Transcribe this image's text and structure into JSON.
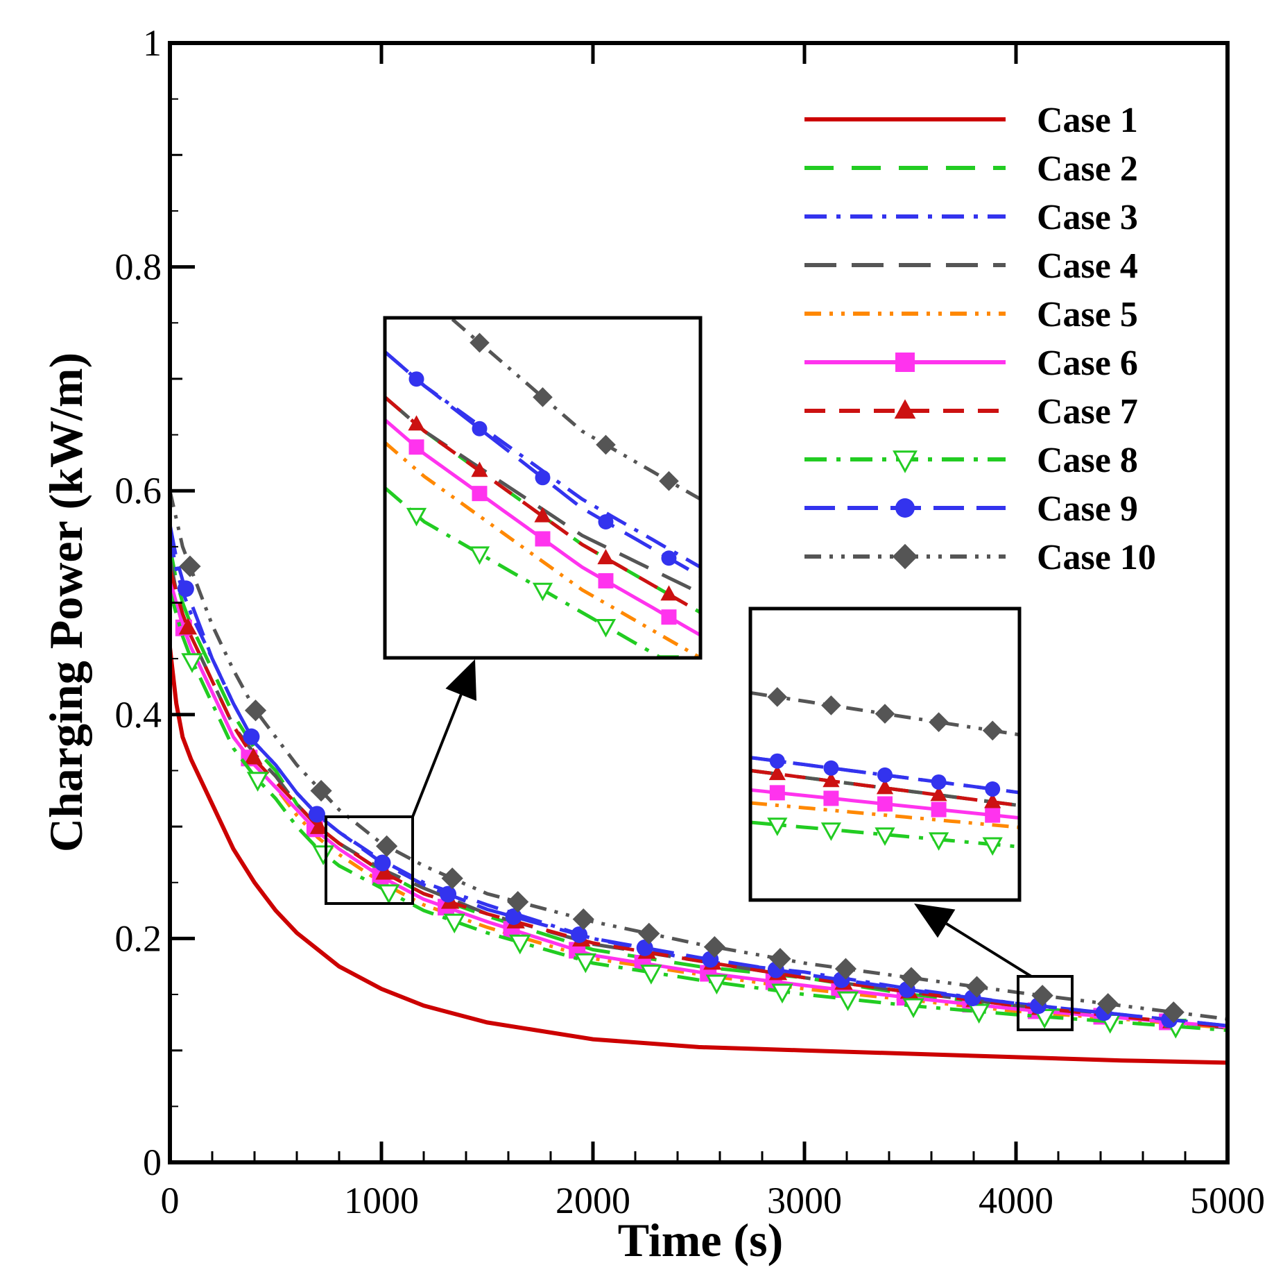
{
  "chart_data": {
    "type": "line",
    "title": "",
    "xlabel": "Time (s)",
    "ylabel": "Charging Power (kW/m)",
    "xlim": [
      0,
      5000
    ],
    "ylim": [
      0,
      1
    ],
    "xticks": [
      "0",
      "1000",
      "2000",
      "3000",
      "4000",
      "5000"
    ],
    "yticks": [
      "0",
      "0.2",
      "0.4",
      "0.6",
      "0.8",
      "1"
    ],
    "grid": false,
    "legend_position": "top-right",
    "series": [
      {
        "name": "Case 1",
        "color": "#cc0000",
        "dash": "solid",
        "marker": "none",
        "points": [
          [
            0,
            0.46
          ],
          [
            30,
            0.41
          ],
          [
            60,
            0.38
          ],
          [
            100,
            0.36
          ],
          [
            150,
            0.34
          ],
          [
            200,
            0.32
          ],
          [
            300,
            0.28
          ],
          [
            400,
            0.25
          ],
          [
            500,
            0.225
          ],
          [
            600,
            0.205
          ],
          [
            700,
            0.19
          ],
          [
            800,
            0.175
          ],
          [
            1000,
            0.155
          ],
          [
            1200,
            0.14
          ],
          [
            1500,
            0.125
          ],
          [
            2000,
            0.11
          ],
          [
            2500,
            0.103
          ],
          [
            3000,
            0.1
          ],
          [
            3500,
            0.097
          ],
          [
            4000,
            0.094
          ],
          [
            4500,
            0.091
          ],
          [
            5000,
            0.089
          ]
        ]
      },
      {
        "name": "Case 2",
        "color": "#22cc22",
        "dash": "long",
        "marker": "none",
        "points": [
          [
            0,
            0.55
          ],
          [
            30,
            0.52
          ],
          [
            60,
            0.5
          ],
          [
            100,
            0.48
          ],
          [
            150,
            0.46
          ],
          [
            200,
            0.44
          ],
          [
            300,
            0.4
          ],
          [
            400,
            0.37
          ],
          [
            500,
            0.35
          ],
          [
            600,
            0.32
          ],
          [
            700,
            0.3
          ],
          [
            800,
            0.285
          ],
          [
            1000,
            0.26
          ],
          [
            1200,
            0.24
          ],
          [
            1500,
            0.22
          ],
          [
            2000,
            0.19
          ],
          [
            2500,
            0.175
          ],
          [
            3000,
            0.165
          ],
          [
            3500,
            0.15
          ],
          [
            4000,
            0.14
          ],
          [
            4500,
            0.13
          ],
          [
            5000,
            0.12
          ]
        ]
      },
      {
        "name": "Case 3",
        "color": "#3333ee",
        "dash": "dashdot",
        "marker": "none",
        "points": [
          [
            0,
            0.56
          ],
          [
            30,
            0.53
          ],
          [
            60,
            0.51
          ],
          [
            100,
            0.49
          ],
          [
            150,
            0.47
          ],
          [
            200,
            0.45
          ],
          [
            300,
            0.41
          ],
          [
            400,
            0.375
          ],
          [
            500,
            0.355
          ],
          [
            600,
            0.33
          ],
          [
            700,
            0.31
          ],
          [
            800,
            0.295
          ],
          [
            1000,
            0.27
          ],
          [
            1200,
            0.25
          ],
          [
            1500,
            0.23
          ],
          [
            2000,
            0.2
          ],
          [
            2500,
            0.18
          ],
          [
            3000,
            0.17
          ],
          [
            3500,
            0.155
          ],
          [
            4000,
            0.142
          ],
          [
            4500,
            0.132
          ],
          [
            5000,
            0.122
          ]
        ]
      },
      {
        "name": "Case 4",
        "color": "#555555",
        "dash": "longlong",
        "marker": "none",
        "points": [
          [
            0,
            0.54
          ],
          [
            30,
            0.51
          ],
          [
            60,
            0.49
          ],
          [
            100,
            0.47
          ],
          [
            150,
            0.45
          ],
          [
            200,
            0.43
          ],
          [
            300,
            0.39
          ],
          [
            400,
            0.365
          ],
          [
            500,
            0.345
          ],
          [
            600,
            0.32
          ],
          [
            700,
            0.3
          ],
          [
            800,
            0.285
          ],
          [
            1000,
            0.262
          ],
          [
            1200,
            0.245
          ],
          [
            1500,
            0.222
          ],
          [
            2000,
            0.195
          ],
          [
            2500,
            0.18
          ],
          [
            3000,
            0.165
          ],
          [
            3500,
            0.152
          ],
          [
            4000,
            0.14
          ],
          [
            4500,
            0.13
          ],
          [
            5000,
            0.12
          ]
        ]
      },
      {
        "name": "Case 5",
        "color": "#ff8800",
        "dash": "dashdotdot",
        "marker": "none",
        "points": [
          [
            0,
            0.52
          ],
          [
            30,
            0.5
          ],
          [
            60,
            0.48
          ],
          [
            100,
            0.46
          ],
          [
            150,
            0.44
          ],
          [
            200,
            0.42
          ],
          [
            300,
            0.38
          ],
          [
            400,
            0.355
          ],
          [
            500,
            0.335
          ],
          [
            600,
            0.31
          ],
          [
            700,
            0.29
          ],
          [
            800,
            0.275
          ],
          [
            1000,
            0.25
          ],
          [
            1200,
            0.23
          ],
          [
            1500,
            0.21
          ],
          [
            2000,
            0.182
          ],
          [
            2500,
            0.168
          ],
          [
            3000,
            0.155
          ],
          [
            3500,
            0.145
          ],
          [
            4000,
            0.135
          ],
          [
            4500,
            0.128
          ],
          [
            5000,
            0.12
          ]
        ]
      },
      {
        "name": "Case 6",
        "color": "#ff33ee",
        "dash": "solid",
        "marker": "square",
        "points": [
          [
            0,
            0.52
          ],
          [
            30,
            0.5
          ],
          [
            60,
            0.48
          ],
          [
            100,
            0.46
          ],
          [
            150,
            0.44
          ],
          [
            200,
            0.42
          ],
          [
            300,
            0.38
          ],
          [
            400,
            0.355
          ],
          [
            500,
            0.335
          ],
          [
            600,
            0.315
          ],
          [
            700,
            0.295
          ],
          [
            800,
            0.28
          ],
          [
            1000,
            0.255
          ],
          [
            1200,
            0.235
          ],
          [
            1500,
            0.215
          ],
          [
            2000,
            0.185
          ],
          [
            2500,
            0.17
          ],
          [
            3000,
            0.158
          ],
          [
            3500,
            0.147
          ],
          [
            4000,
            0.137
          ],
          [
            4500,
            0.129
          ],
          [
            5000,
            0.121
          ]
        ]
      },
      {
        "name": "Case 7",
        "color": "#cc1111",
        "dash": "dash",
        "marker": "triangle",
        "points": [
          [
            0,
            0.53
          ],
          [
            30,
            0.51
          ],
          [
            60,
            0.49
          ],
          [
            100,
            0.47
          ],
          [
            150,
            0.45
          ],
          [
            200,
            0.43
          ],
          [
            300,
            0.39
          ],
          [
            400,
            0.36
          ],
          [
            500,
            0.34
          ],
          [
            600,
            0.32
          ],
          [
            700,
            0.3
          ],
          [
            800,
            0.285
          ],
          [
            1000,
            0.26
          ],
          [
            1200,
            0.24
          ],
          [
            1500,
            0.222
          ],
          [
            2000,
            0.196
          ],
          [
            2500,
            0.18
          ],
          [
            3000,
            0.165
          ],
          [
            3500,
            0.152
          ],
          [
            4000,
            0.14
          ],
          [
            4500,
            0.13
          ],
          [
            5000,
            0.121
          ]
        ]
      },
      {
        "name": "Case 8",
        "color": "#22cc22",
        "dash": "dashdot",
        "marker": "triangle-down-open",
        "points": [
          [
            0,
            0.51
          ],
          [
            30,
            0.49
          ],
          [
            60,
            0.47
          ],
          [
            100,
            0.45
          ],
          [
            150,
            0.43
          ],
          [
            200,
            0.41
          ],
          [
            300,
            0.37
          ],
          [
            400,
            0.345
          ],
          [
            500,
            0.325
          ],
          [
            600,
            0.3
          ],
          [
            700,
            0.28
          ],
          [
            800,
            0.265
          ],
          [
            1000,
            0.245
          ],
          [
            1200,
            0.225
          ],
          [
            1500,
            0.205
          ],
          [
            2000,
            0.178
          ],
          [
            2500,
            0.163
          ],
          [
            3000,
            0.15
          ],
          [
            3500,
            0.14
          ],
          [
            4000,
            0.132
          ],
          [
            4500,
            0.125
          ],
          [
            5000,
            0.118
          ]
        ]
      },
      {
        "name": "Case 9",
        "color": "#3333ee",
        "dash": "longdash",
        "marker": "circle",
        "points": [
          [
            0,
            0.57
          ],
          [
            30,
            0.54
          ],
          [
            60,
            0.52
          ],
          [
            100,
            0.5
          ],
          [
            150,
            0.475
          ],
          [
            200,
            0.45
          ],
          [
            300,
            0.41
          ],
          [
            400,
            0.375
          ],
          [
            500,
            0.355
          ],
          [
            600,
            0.33
          ],
          [
            700,
            0.31
          ],
          [
            800,
            0.295
          ],
          [
            1000,
            0.268
          ],
          [
            1200,
            0.248
          ],
          [
            1500,
            0.226
          ],
          [
            2000,
            0.2
          ],
          [
            2500,
            0.183
          ],
          [
            3000,
            0.168
          ],
          [
            3500,
            0.154
          ],
          [
            4000,
            0.142
          ],
          [
            4500,
            0.132
          ],
          [
            5000,
            0.122
          ]
        ]
      },
      {
        "name": "Case 10",
        "color": "#555555",
        "dash": "dashdotdot",
        "marker": "diamond",
        "points": [
          [
            0,
            0.6
          ],
          [
            30,
            0.575
          ],
          [
            60,
            0.55
          ],
          [
            100,
            0.53
          ],
          [
            150,
            0.505
          ],
          [
            200,
            0.48
          ],
          [
            300,
            0.44
          ],
          [
            400,
            0.405
          ],
          [
            500,
            0.38
          ],
          [
            600,
            0.355
          ],
          [
            700,
            0.335
          ],
          [
            800,
            0.315
          ],
          [
            1000,
            0.285
          ],
          [
            1200,
            0.265
          ],
          [
            1500,
            0.24
          ],
          [
            2000,
            0.215
          ],
          [
            2500,
            0.195
          ],
          [
            3000,
            0.178
          ],
          [
            3500,
            0.165
          ],
          [
            4000,
            0.152
          ],
          [
            4500,
            0.14
          ],
          [
            5000,
            0.128
          ]
        ]
      }
    ],
    "insets": [
      {
        "name": "zoom-inset-1000s",
        "x_range": [
          750,
          1150
        ],
        "y_range": [
          0.235,
          0.31
        ]
      },
      {
        "name": "zoom-inset-4000s",
        "x_range": [
          4000,
          4270
        ],
        "y_range": [
          0.12,
          0.165
        ]
      }
    ]
  }
}
